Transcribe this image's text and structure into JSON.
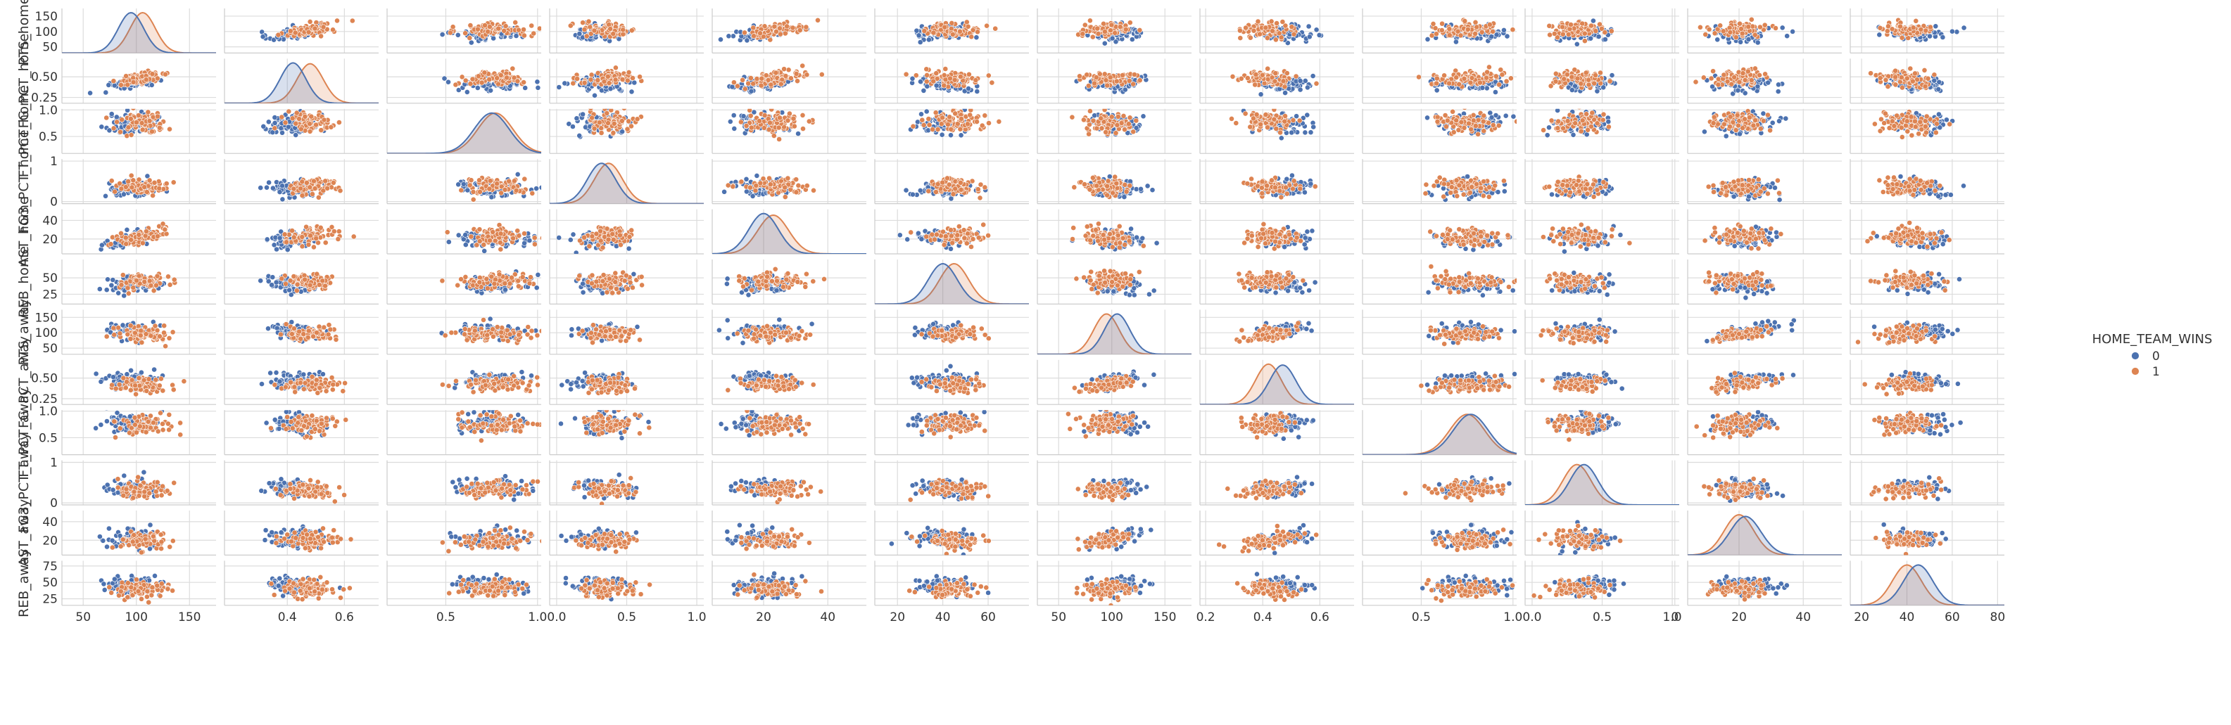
{
  "chart_data": {
    "type": "scatter",
    "plot_kind": "pairplot",
    "hue": "HOME_TEAM_WINS",
    "variables": [
      "PTS_home",
      "FG_PCT_home",
      "FT_PCT_home",
      "FG3_PCT_home",
      "AST_home",
      "REB_home",
      "PTS_away",
      "FG_PCT_away",
      "FT_PCT_away",
      "FG3_PCT_away",
      "AST_away",
      "REB_away"
    ],
    "ylabels": [
      "PTS_home",
      "FG_PCT_home",
      "FT_PCT_home",
      "FG3_PCT_home",
      "AST_home",
      "REB_home",
      "PTS_away",
      "FG_PCT_away",
      "FT_PCT_away",
      "FG3_PCT_away",
      "AST_away",
      "REB_away"
    ],
    "diagonal": "kde",
    "grid": true,
    "legend": {
      "title": "HOME_TEAM_WINS",
      "placement": "center-right",
      "entries": [
        {
          "label": "0",
          "color": "#4c72b0"
        },
        {
          "label": "1",
          "color": "#dd8452"
        }
      ]
    },
    "axis_ranges": [
      [
        30,
        175
      ],
      [
        0.18,
        0.72
      ],
      [
        0.18,
        1.02
      ],
      [
        -0.05,
        1.05
      ],
      [
        4,
        52
      ],
      [
        10,
        78
      ],
      [
        30,
        175
      ],
      [
        0.18,
        0.72
      ],
      [
        0.18,
        1.02
      ],
      [
        -0.05,
        1.05
      ],
      [
        4,
        52
      ],
      [
        15,
        83
      ]
    ],
    "x_ticks": [
      [
        50,
        100,
        150
      ],
      [
        0.4,
        0.6
      ],
      [
        0.5,
        1.0
      ],
      [
        0.0,
        0.5,
        1.0
      ],
      [
        20,
        40
      ],
      [
        20,
        40,
        60
      ],
      [
        50,
        100,
        150
      ],
      [
        0.2,
        0.4,
        0.6
      ],
      [
        0.5,
        1.0
      ],
      [
        0.0,
        0.5,
        1.0
      ],
      [
        0,
        20,
        40
      ],
      [
        20,
        40,
        60,
        80
      ]
    ],
    "x_tick_labels": [
      [
        "50",
        "100",
        "150"
      ],
      [
        "0.4",
        "0.6"
      ],
      [
        "0.5",
        "1.0"
      ],
      [
        "0.0",
        "0.5",
        "1.0"
      ],
      [
        "20",
        "40"
      ],
      [
        "20",
        "40",
        "60"
      ],
      [
        "50",
        "100",
        "150"
      ],
      [
        "0.2",
        "0.4",
        "0.6"
      ],
      [
        "0.5",
        "1.0"
      ],
      [
        "0.0",
        "0.5",
        "1.0"
      ],
      [
        "0",
        "20",
        "40"
      ],
      [
        "20",
        "40",
        "60",
        "80"
      ]
    ],
    "y_ticks": [
      [
        50,
        100,
        150
      ],
      [
        0.25,
        0.5
      ],
      [
        0.5,
        1.0
      ],
      [
        0,
        1
      ],
      [
        20,
        40
      ],
      [
        25,
        50
      ],
      [
        50,
        100,
        150
      ],
      [
        0.25,
        0.5
      ],
      [
        0.5,
        1.0
      ],
      [
        0,
        1
      ],
      [
        20,
        40
      ],
      [
        25,
        50,
        75
      ]
    ],
    "y_tick_labels": [
      [
        "50",
        "100",
        "150"
      ],
      [
        "0.25",
        "0.50"
      ],
      [
        "0.5",
        "1.0"
      ],
      [
        "0",
        "1"
      ],
      [
        "20",
        "40"
      ],
      [
        "25",
        "50"
      ],
      [
        "50",
        "100",
        "150"
      ],
      [
        "0.25",
        "0.50"
      ],
      [
        "0.5",
        "1.0"
      ],
      [
        "0",
        "1"
      ],
      [
        "20",
        "40"
      ],
      [
        "25",
        "50",
        "75"
      ]
    ],
    "series": [
      {
        "name": "0",
        "color": "#4c72b0",
        "mean": [
          95,
          0.42,
          0.75,
          0.32,
          20,
          40,
          105,
          0.47,
          0.77,
          0.37,
          22,
          45
        ],
        "std": [
          12,
          0.045,
          0.095,
          0.1,
          4.6,
          6.4,
          12,
          0.046,
          0.095,
          0.1,
          4.8,
          6.4
        ]
      },
      {
        "name": "1",
        "color": "#dd8452",
        "mean": [
          106,
          0.48,
          0.77,
          0.37,
          23,
          45,
          95,
          0.42,
          0.75,
          0.32,
          20,
          40
        ],
        "std": [
          12,
          0.046,
          0.095,
          0.1,
          4.8,
          6.4,
          12,
          0.045,
          0.095,
          0.1,
          4.6,
          6.4
        ]
      }
    ],
    "correlations": [
      {
        "a": 0,
        "b": 1,
        "r": 0.55
      },
      {
        "a": 0,
        "b": 4,
        "r": 0.6
      },
      {
        "a": 1,
        "b": 4,
        "r": 0.45
      },
      {
        "a": 6,
        "b": 7,
        "r": 0.55
      },
      {
        "a": 6,
        "b": 10,
        "r": 0.6
      },
      {
        "a": 7,
        "b": 10,
        "r": 0.45
      },
      {
        "a": 5,
        "b": 1,
        "r": -0.3
      },
      {
        "a": 11,
        "b": 7,
        "r": -0.3
      }
    ]
  }
}
